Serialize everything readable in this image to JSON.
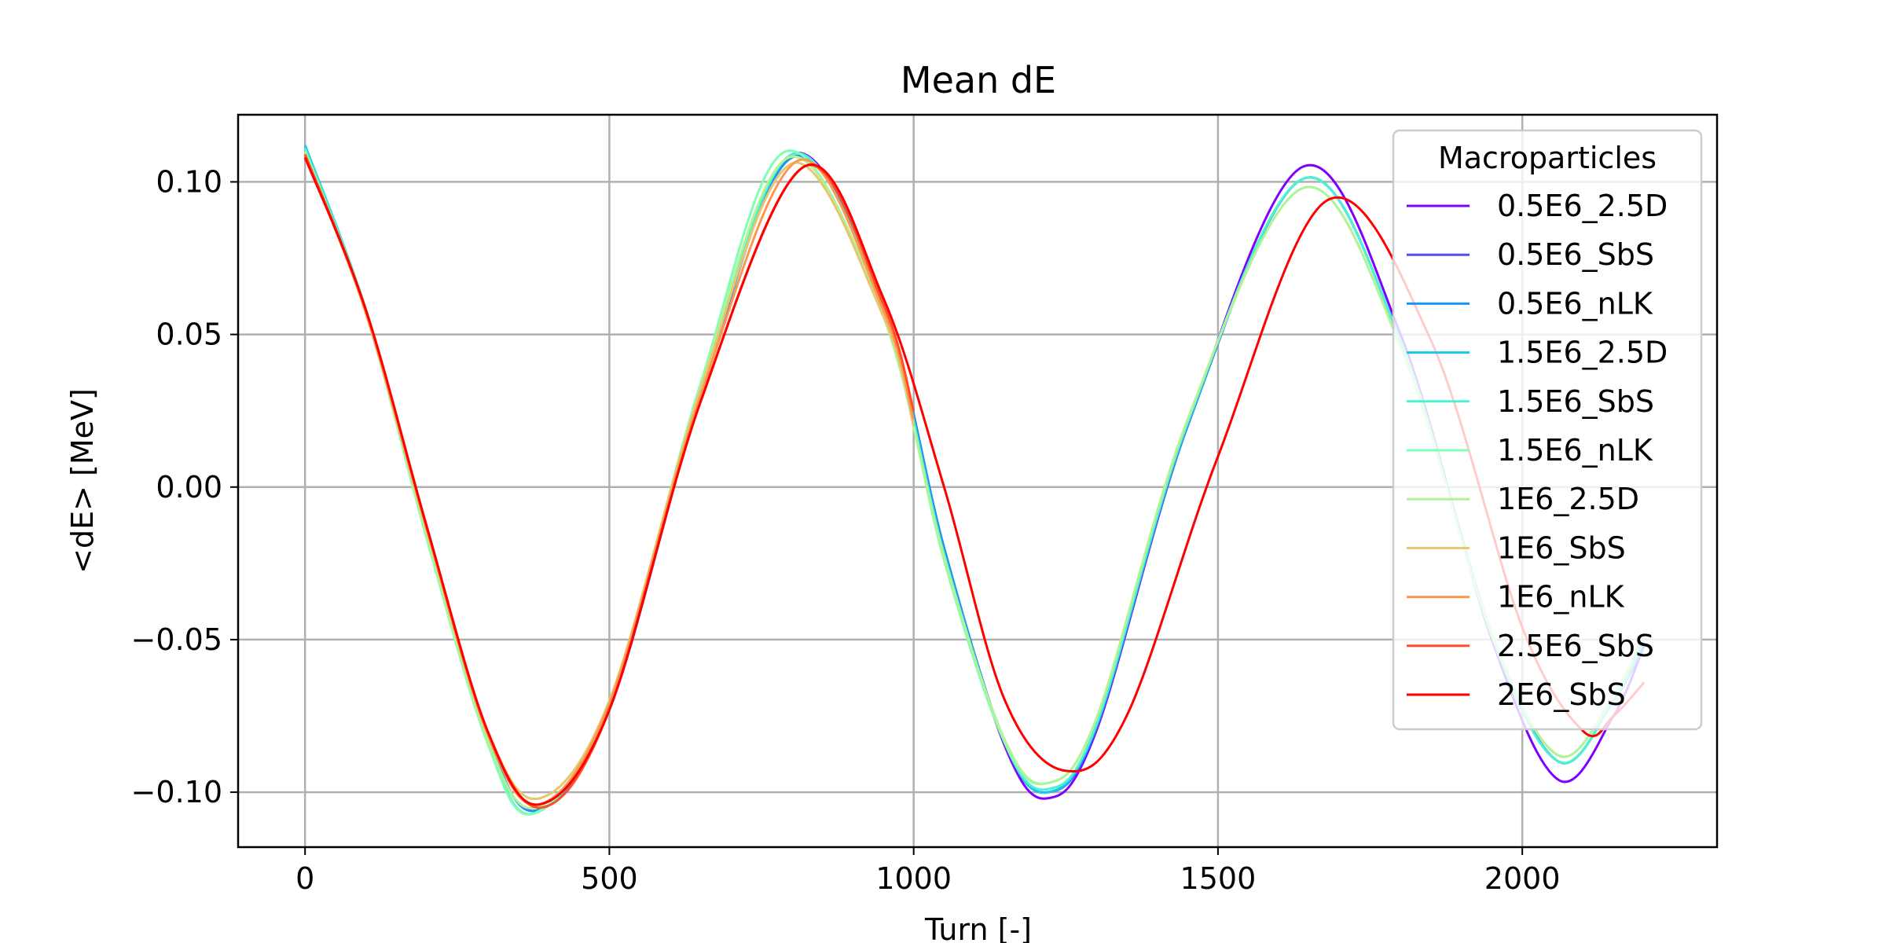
{
  "chart_data": {
    "type": "line",
    "title": "Mean dE",
    "xlabel": "Turn [-]",
    "ylabel": "<dE> [MeV]",
    "xlim": [
      -110,
      2320
    ],
    "ylim": [
      -0.118,
      0.122
    ],
    "xticks": [
      0,
      500,
      1000,
      1500,
      2000
    ],
    "xtick_labels": [
      "0",
      "500",
      "1000",
      "1500",
      "2000"
    ],
    "yticks": [
      0.1,
      0.05,
      0.0,
      -0.05,
      -0.1
    ],
    "ytick_labels": [
      "0.10",
      "0.05",
      "0.00",
      "−0.05",
      "−0.10"
    ],
    "grid": true,
    "legend_title": "Macroparticles",
    "legend_position": "upper right",
    "series": [
      {
        "name": "0.5E6_2.5D",
        "color": "#8000ff",
        "x": [
          0,
          100,
          200,
          300,
          380,
          500,
          650,
          800,
          950,
          1050,
          1150,
          1220,
          1300,
          1450,
          1640,
          1800,
          1950,
          2060,
          2150,
          2200
        ],
        "y": [
          0.11,
          0.058,
          -0.015,
          -0.082,
          -0.106,
          -0.073,
          0.03,
          0.109,
          0.06,
          -0.02,
          -0.085,
          -0.102,
          -0.08,
          0.02,
          0.105,
          0.05,
          -0.05,
          -0.096,
          -0.075,
          -0.052
        ]
      },
      {
        "name": "0.5E6_SbS",
        "color": "#4c50fc",
        "x": [
          0,
          100,
          200,
          300,
          380,
          500,
          650,
          800,
          950,
          1050,
          1150,
          1220,
          1300,
          1450,
          1640,
          1800,
          1950,
          2060,
          2150,
          2200
        ],
        "y": [
          0.11,
          0.058,
          -0.015,
          -0.082,
          -0.106,
          -0.073,
          0.03,
          0.108,
          0.06,
          -0.02,
          -0.084,
          -0.1,
          -0.079,
          0.02,
          0.101,
          0.048,
          -0.048,
          -0.09,
          -0.07,
          -0.052
        ]
      },
      {
        "name": "0.5E6_nLK",
        "color": "#1996f3",
        "x": [
          0,
          100,
          200,
          300,
          380,
          500,
          650,
          800,
          950,
          1050,
          1150,
          1220,
          1300,
          1450,
          1640,
          1800,
          1950,
          2060,
          2150,
          2200
        ],
        "y": [
          0.11,
          0.058,
          -0.015,
          -0.082,
          -0.106,
          -0.073,
          0.03,
          0.108,
          0.06,
          -0.02,
          -0.084,
          -0.1,
          -0.079,
          0.02,
          0.101,
          0.048,
          -0.048,
          -0.09,
          -0.07,
          -0.052
        ]
      },
      {
        "name": "1.5E6_2.5D",
        "color": "#1ac7e6",
        "x": [
          0,
          100,
          200,
          300,
          375,
          500,
          650,
          800,
          950,
          1050,
          1150,
          1220,
          1300,
          1450,
          1640,
          1800,
          1950,
          2060,
          2150,
          2200
        ],
        "y": [
          0.112,
          0.058,
          -0.016,
          -0.083,
          -0.107,
          -0.072,
          0.032,
          0.109,
          0.058,
          -0.022,
          -0.084,
          -0.1,
          -0.078,
          0.021,
          0.101,
          0.048,
          -0.049,
          -0.09,
          -0.07,
          -0.05
        ]
      },
      {
        "name": "1.5E6_SbS",
        "color": "#4df3ce",
        "x": [
          0,
          100,
          200,
          300,
          375,
          500,
          650,
          800,
          950,
          1050,
          1150,
          1220,
          1300,
          1450,
          1640,
          1800,
          1950,
          2060,
          2150,
          2200
        ],
        "y": [
          0.111,
          0.058,
          -0.016,
          -0.083,
          -0.107,
          -0.072,
          0.032,
          0.109,
          0.058,
          -0.022,
          -0.084,
          -0.099,
          -0.078,
          0.021,
          0.101,
          0.048,
          -0.049,
          -0.09,
          -0.07,
          -0.05
        ]
      },
      {
        "name": "1.5E6_nLK",
        "color": "#80ffb4",
        "x": [
          0,
          100,
          200,
          300,
          375,
          500,
          650,
          790,
          950,
          1050,
          1150,
          1220,
          1300,
          1450,
          1640,
          1800,
          1950,
          2060,
          2150,
          2200
        ],
        "y": [
          0.11,
          0.057,
          -0.017,
          -0.084,
          -0.107,
          -0.071,
          0.034,
          0.11,
          0.056,
          -0.024,
          -0.084,
          -0.097,
          -0.076,
          0.022,
          0.098,
          0.046,
          -0.048,
          -0.088,
          -0.068,
          -0.048
        ]
      },
      {
        "name": "1E6_2.5D",
        "color": "#b3f396",
        "x": [
          0,
          100,
          200,
          300,
          380,
          500,
          650,
          795,
          950,
          1050,
          1150,
          1220,
          1300,
          1450,
          1640,
          1800,
          1950,
          2060,
          2150,
          2200
        ],
        "y": [
          0.11,
          0.057,
          -0.016,
          -0.083,
          -0.105,
          -0.071,
          0.033,
          0.108,
          0.056,
          -0.023,
          -0.083,
          -0.097,
          -0.076,
          0.022,
          0.098,
          0.046,
          -0.048,
          -0.088,
          -0.068,
          -0.048
        ]
      },
      {
        "name": "1E6_SbS",
        "color": "#e6c76f",
        "x": [
          0,
          100,
          200,
          300,
          385,
          500,
          650,
          800,
          950,
          1000
        ],
        "y": [
          0.109,
          0.057,
          -0.014,
          -0.08,
          -0.102,
          -0.07,
          0.032,
          0.106,
          0.056,
          0.02
        ]
      },
      {
        "name": "1E6_nLK",
        "color": "#ff9650",
        "x": [
          0,
          100,
          200,
          300,
          385,
          500,
          650,
          810,
          950,
          1000
        ],
        "y": [
          0.109,
          0.057,
          -0.014,
          -0.081,
          -0.104,
          -0.071,
          0.03,
          0.107,
          0.058,
          0.022
        ]
      },
      {
        "name": "2.5E6_SbS",
        "color": "#ff4f28",
        "x": [
          0,
          100,
          200,
          300,
          390,
          500,
          650,
          820,
          950,
          1000
        ],
        "y": [
          0.109,
          0.058,
          -0.013,
          -0.08,
          -0.105,
          -0.073,
          0.028,
          0.105,
          0.06,
          0.025
        ]
      },
      {
        "name": "2E6_SbS",
        "color": "#ff0000",
        "x": [
          0,
          100,
          200,
          300,
          385,
          500,
          650,
          820,
          950,
          1050,
          1150,
          1250,
          1350,
          1500,
          1680,
          1850,
          2000,
          2100,
          2150,
          2200
        ],
        "y": [
          0.108,
          0.058,
          -0.013,
          -0.08,
          -0.104,
          -0.073,
          0.028,
          0.105,
          0.062,
          0.0,
          -0.07,
          -0.093,
          -0.075,
          0.01,
          0.094,
          0.048,
          -0.046,
          -0.08,
          -0.075,
          -0.064
        ]
      }
    ]
  }
}
